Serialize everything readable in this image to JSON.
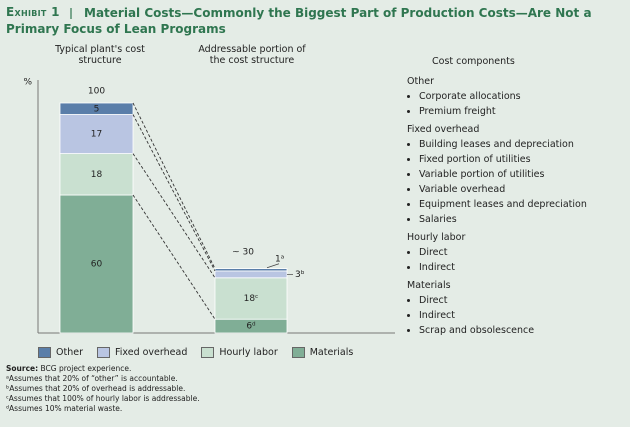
{
  "chart_data": {
    "type": "bar",
    "stacked": true,
    "exhibit": "Exhibit 1",
    "title": "Material Costs—Commonly the Biggest Part of Production Costs—Are Not a Primary Focus of Lean Programs",
    "y_label": "%",
    "categories": [
      "Typical plant's cost structure",
      "Addressable portion of the cost structure"
    ],
    "series": [
      {
        "name": "Other",
        "color": "#5a7ea9",
        "values": [
          5,
          1
        ],
        "value_labels": [
          "5",
          "1ᵃ"
        ]
      },
      {
        "name": "Fixed overhead",
        "color": "#b9c5e2",
        "values": [
          17,
          3
        ],
        "value_labels": [
          "17",
          "3ᵇ"
        ]
      },
      {
        "name": "Hourly labor",
        "color": "#c9e0d0",
        "values": [
          18,
          18
        ],
        "value_labels": [
          "18",
          "18ᶜ"
        ]
      },
      {
        "name": "Materials",
        "color": "#80ae96",
        "values": [
          60,
          6
        ],
        "value_labels": [
          "60",
          "6ᵈ"
        ]
      }
    ],
    "totals": [
      100,
      30
    ],
    "total_labels": [
      "100",
      "~ 30"
    ],
    "ylim": [
      0,
      110
    ],
    "legend": "bottom"
  },
  "cost_components": {
    "title": "Cost components",
    "groups": [
      {
        "name": "Other",
        "items": [
          "Corporate allocations",
          "Premium freight"
        ]
      },
      {
        "name": "Fixed overhead",
        "items": [
          "Building leases and depreciation",
          "Fixed portion of utilities",
          "Variable portion of utilities",
          "Variable overhead",
          "Equipment leases and depreciation",
          "Salaries"
        ]
      },
      {
        "name": "Hourly labor",
        "items": [
          "Direct",
          "Indirect"
        ]
      },
      {
        "name": "Materials",
        "items": [
          "Direct",
          "Indirect",
          "Scrap and obsolescence"
        ]
      }
    ]
  },
  "source_label": "Source:",
  "source": "BCG project experience.",
  "footnotes": [
    "ᵃAssumes that 20% of “other” is accountable.",
    "ᵇAssumes that 20% of overhead is addressable.",
    "ᶜAssumes that 100% of hourly labor is addressable.",
    "ᵈAssumes 10% material waste."
  ]
}
